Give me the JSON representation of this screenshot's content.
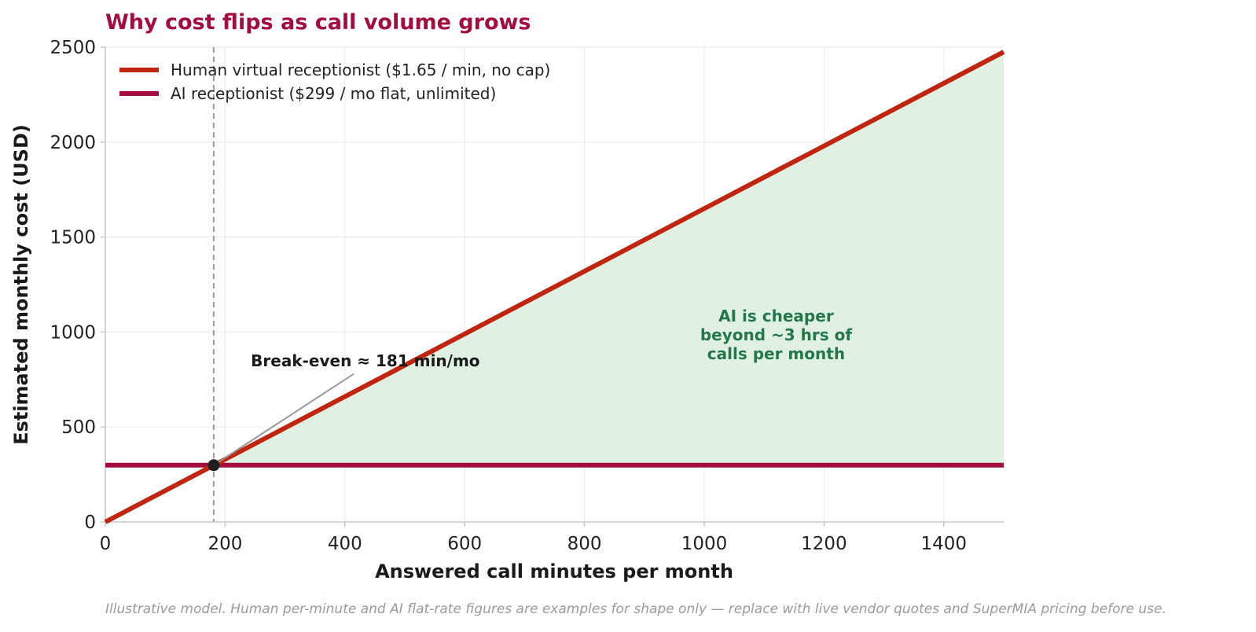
{
  "chart_data": {
    "type": "line",
    "title": "Why cost flips as call volume grows",
    "xlabel": "Answered call minutes per month",
    "ylabel": "Estimated monthly cost (USD)",
    "xlim": [
      0,
      1500
    ],
    "ylim": [
      0,
      2500
    ],
    "xticks": [
      0,
      200,
      400,
      600,
      800,
      1000,
      1200,
      1400
    ],
    "yticks": [
      0,
      500,
      1000,
      1500,
      2000,
      2500
    ],
    "grid": true,
    "legend_position": "top-left",
    "series": [
      {
        "name": "Human virtual receptionist  ($1.65 / min, no cap)",
        "color": "#c0260f",
        "x": [
          0,
          1500
        ],
        "y": [
          0,
          2475
        ]
      },
      {
        "name": "AI receptionist  ($299 / mo flat, unlimited)",
        "color": "#a50c3e",
        "x": [
          0,
          1500
        ],
        "y": [
          299,
          299
        ]
      }
    ],
    "break_even": {
      "x": 181,
      "y": 299,
      "label": "Break-even ≈ 181 min/mo"
    },
    "shaded_region": {
      "from_x": 181,
      "to_x": 1500,
      "color": "#e0f1e4",
      "label": [
        "AI is cheaper",
        "beyond ~3 hrs of",
        "calls per month"
      ],
      "label_color": "#23774a"
    },
    "footnote": "Illustrative model. Human per-minute and AI flat-rate figures are examples for shape only — replace with live vendor quotes and SuperMIA pricing before use."
  }
}
